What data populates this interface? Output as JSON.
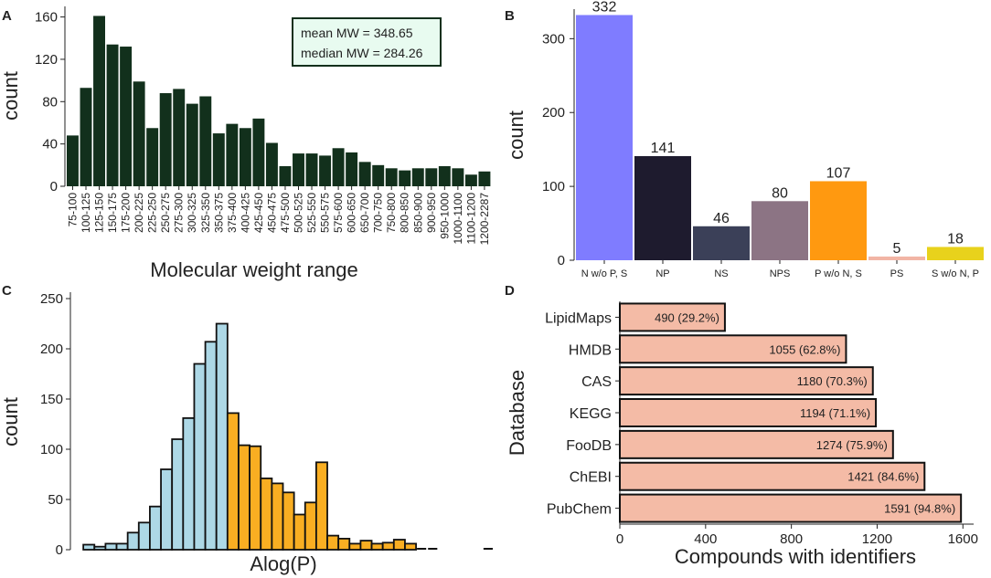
{
  "chart_data": [
    {
      "panel": "A",
      "type": "bar",
      "xlabel": "Molecular weight range",
      "ylabel": "count",
      "ylim": [
        0,
        170
      ],
      "yticks": [
        0,
        40,
        80,
        120,
        160
      ],
      "bar_color": "#12301c",
      "stats": [
        "mean MW = 348.65",
        "median MW = 284.26"
      ],
      "categories": [
        "75-100",
        "100-125",
        "125-150",
        "150-175",
        "175-200",
        "200-225",
        "225-250",
        "250-275",
        "275-300",
        "300-325",
        "325-350",
        "350-375",
        "375-400",
        "400-425",
        "425-450",
        "450-475",
        "475-500",
        "500-525",
        "525-550",
        "550-575",
        "575-600",
        "600-650",
        "650-700",
        "700-750",
        "750-800",
        "800-850",
        "850-900",
        "900-950",
        "950-1000",
        "1000-1100",
        "1100-1200",
        "1200-2287"
      ],
      "values": [
        48,
        93,
        161,
        134,
        132,
        99,
        55,
        88,
        92,
        78,
        85,
        50,
        59,
        55,
        64,
        41,
        19,
        31,
        31,
        29,
        36,
        32,
        23,
        20,
        17,
        15,
        17,
        17,
        19,
        17,
        11,
        14
      ]
    },
    {
      "panel": "B",
      "type": "bar",
      "xlabel": "",
      "ylabel": "count",
      "ylim": [
        0,
        340
      ],
      "yticks": [
        0,
        100,
        200,
        300
      ],
      "categories": [
        "N w/o P, S",
        "NP",
        "NS",
        "NPS",
        "P w/o N, S",
        "PS",
        "S w/o N, P"
      ],
      "values": [
        332,
        141,
        46,
        80,
        107,
        5,
        18
      ],
      "labels": [
        "332",
        "141",
        "46",
        "80",
        "107",
        "5",
        "18"
      ],
      "colors": [
        "#7f7cff",
        "#1e1b2e",
        "#3b4058",
        "#8c7484",
        "#ff9910",
        "#f2b5a5",
        "#e8d21c"
      ]
    },
    {
      "panel": "C",
      "type": "bar",
      "subtype": "histogram",
      "xlabel": "Alog(P)",
      "ylabel": "count",
      "ylim": [
        0,
        250
      ],
      "yticks": [
        0,
        50,
        100,
        150,
        200,
        250
      ],
      "colors": {
        "negative": "#add8e6",
        "positive": "#f9ae22"
      },
      "bins": [
        {
          "v": 0,
          "g": "negative"
        },
        {
          "v": 5,
          "g": "negative"
        },
        {
          "v": 3,
          "g": "negative"
        },
        {
          "v": 6,
          "g": "negative"
        },
        {
          "v": 6,
          "g": "negative"
        },
        {
          "v": 17,
          "g": "negative"
        },
        {
          "v": 27,
          "g": "negative"
        },
        {
          "v": 43,
          "g": "negative"
        },
        {
          "v": 80,
          "g": "negative"
        },
        {
          "v": 110,
          "g": "negative"
        },
        {
          "v": 131,
          "g": "negative"
        },
        {
          "v": 185,
          "g": "negative"
        },
        {
          "v": 207,
          "g": "negative"
        },
        {
          "v": 225,
          "g": "negative"
        },
        {
          "v": 136,
          "g": "positive"
        },
        {
          "v": 104,
          "g": "positive"
        },
        {
          "v": 103,
          "g": "positive"
        },
        {
          "v": 71,
          "g": "positive"
        },
        {
          "v": 66,
          "g": "positive"
        },
        {
          "v": 57,
          "g": "positive"
        },
        {
          "v": 35,
          "g": "positive"
        },
        {
          "v": 47,
          "g": "positive"
        },
        {
          "v": 87,
          "g": "positive"
        },
        {
          "v": 14,
          "g": "positive"
        },
        {
          "v": 11,
          "g": "positive"
        },
        {
          "v": 6,
          "g": "positive"
        },
        {
          "v": 9,
          "g": "positive"
        },
        {
          "v": 6,
          "g": "positive"
        },
        {
          "v": 7,
          "g": "positive"
        },
        {
          "v": 10,
          "g": "positive"
        },
        {
          "v": 6,
          "g": "positive"
        },
        {
          "v": 0,
          "g": "positive"
        },
        {
          "v": 0,
          "g": "positive"
        },
        {
          "v": 0,
          "g": "positive"
        },
        {
          "v": 0,
          "g": "positive"
        },
        {
          "v": 0,
          "g": "positive"
        },
        {
          "v": 0,
          "g": "positive"
        },
        {
          "v": 0,
          "g": "positive"
        }
      ]
    },
    {
      "panel": "D",
      "type": "bar",
      "orientation": "horizontal",
      "xlabel": "Compounds with identifiers",
      "ylabel": "Database",
      "xlim": [
        0,
        1650
      ],
      "xticks": [
        0,
        400,
        800,
        1200,
        1600
      ],
      "bar_color": "#f4bba6",
      "categories": [
        "LipidMaps",
        "HMDB",
        "CAS",
        "KEGG",
        "FooDB",
        "ChEBI",
        "PubChem"
      ],
      "values": [
        490,
        1055,
        1180,
        1194,
        1274,
        1421,
        1591
      ],
      "labels": [
        "490 (29.2%)",
        "1055 (62.8%)",
        "1180 (70.3%)",
        "1194 (71.1%)",
        "1274 (75.9%)",
        "1421 (84.6%)",
        "1591 (94.8%)"
      ]
    }
  ]
}
